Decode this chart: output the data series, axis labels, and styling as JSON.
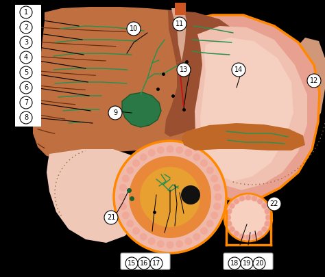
{
  "bg_color": "#000000",
  "liver_color": "#c07040",
  "liver_dark": "#9a5030",
  "liver_mid": "#b06035",
  "stomach_fill": "#e8a090",
  "stomach_inner": "#f0c0b0",
  "stomach_light": "#f5d0c0",
  "stomach_outline": "#ff8800",
  "gallbladder_color": "#2a7845",
  "pancreas_color": "#c06828",
  "intestine_outer_fill": "#f0b0a0",
  "intestine_orange": "#e88030",
  "intestine_center": "#e09028",
  "small_int_outer": "#f0b8a8",
  "right_lobe_fill": "#d09070",
  "mesentery_fill": "#f5c8b8",
  "label_bg": "#ffffff",
  "label_text": "#000000",
  "line_color": "#000000",
  "green_line": "#2a9050",
  "red_color": "#cc1111",
  "dot_color": "#996633",
  "fig_width": 4.74,
  "fig_height": 4.05,
  "dpi": 100
}
